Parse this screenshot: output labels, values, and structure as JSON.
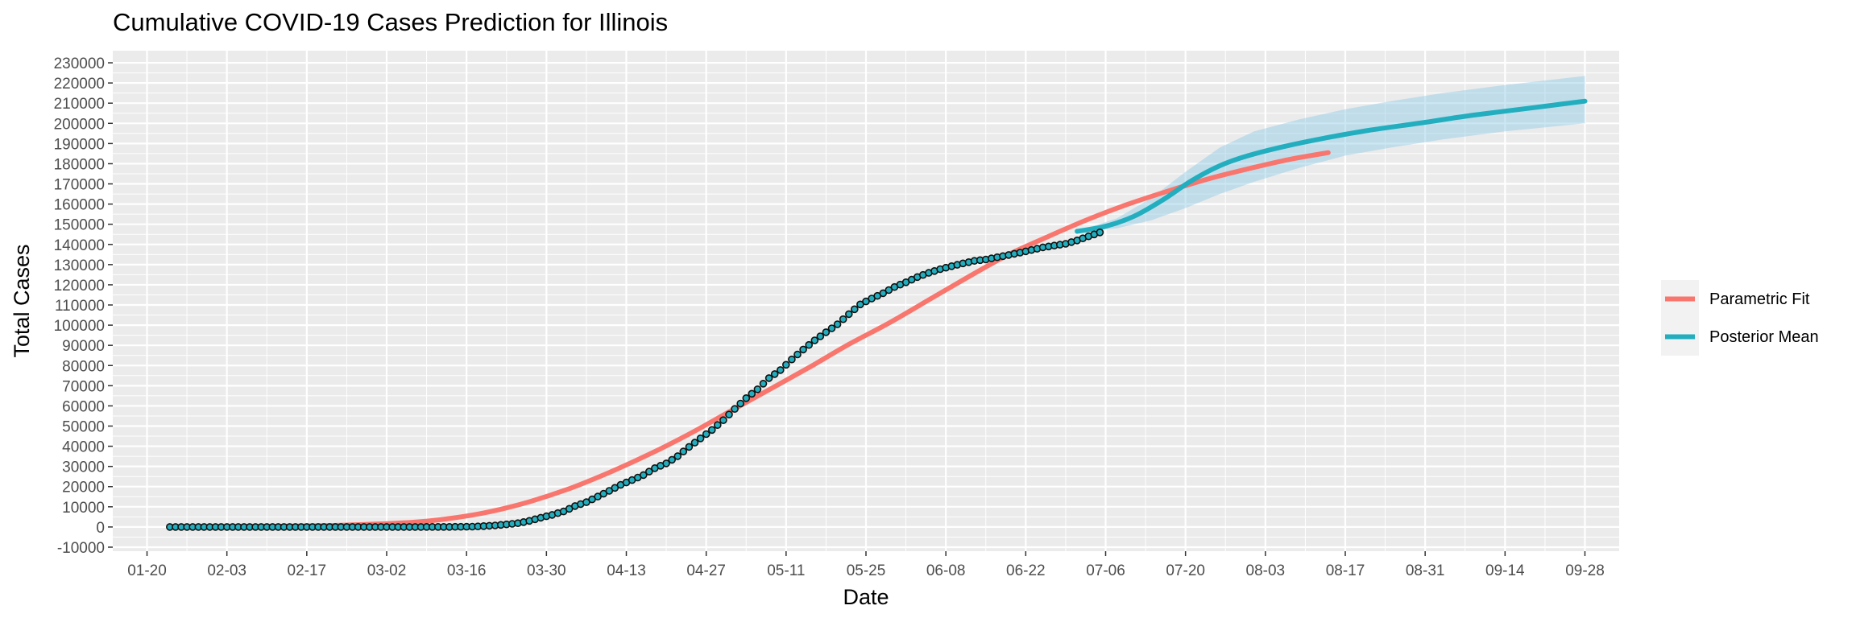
{
  "chart_data": {
    "type": "line",
    "title": "Cumulative COVID-19 Cases Prediction for Illinois",
    "xlabel": "Date",
    "ylabel": "Total Cases",
    "x_ticks": [
      "01-20",
      "02-03",
      "02-17",
      "03-02",
      "03-16",
      "03-30",
      "04-13",
      "04-27",
      "05-11",
      "05-25",
      "06-08",
      "06-22",
      "07-06",
      "07-20",
      "08-03",
      "08-17",
      "08-31",
      "09-14",
      "09-28"
    ],
    "x_range": [
      "2020-01-14",
      "2020-10-04"
    ],
    "ylim": [
      -12000,
      236000
    ],
    "y_ticks": [
      -10000,
      0,
      10000,
      20000,
      30000,
      40000,
      50000,
      60000,
      70000,
      80000,
      90000,
      100000,
      110000,
      120000,
      130000,
      140000,
      150000,
      160000,
      170000,
      180000,
      190000,
      200000,
      210000,
      220000,
      230000
    ],
    "grid": true,
    "legend_position": "right",
    "series": [
      {
        "name": "Parametric Fit",
        "color": "#F8766D",
        "points": [
          [
            "2020-01-24",
            100
          ],
          [
            "2020-02-07",
            250
          ],
          [
            "2020-02-21",
            700
          ],
          [
            "2020-03-06",
            2200
          ],
          [
            "2020-03-13",
            4200
          ],
          [
            "2020-03-20",
            7500
          ],
          [
            "2020-03-27",
            12500
          ],
          [
            "2020-04-03",
            19000
          ],
          [
            "2020-04-10",
            27000
          ],
          [
            "2020-04-17",
            36000
          ],
          [
            "2020-04-24",
            46000
          ],
          [
            "2020-05-01",
            57000
          ],
          [
            "2020-05-08",
            68000
          ],
          [
            "2020-05-15",
            79000
          ],
          [
            "2020-05-22",
            90500
          ],
          [
            "2020-05-29",
            101000
          ],
          [
            "2020-06-05",
            112500
          ],
          [
            "2020-06-12",
            124000
          ],
          [
            "2020-06-19",
            135000
          ],
          [
            "2020-06-26",
            144000
          ],
          [
            "2020-07-03",
            152500
          ],
          [
            "2020-07-10",
            160000
          ],
          [
            "2020-07-17",
            166500
          ],
          [
            "2020-07-24",
            172500
          ],
          [
            "2020-07-31",
            177500
          ],
          [
            "2020-08-07",
            182000
          ],
          [
            "2020-08-14",
            185500
          ]
        ]
      },
      {
        "name": "Posterior Mean",
        "color": "#22AEBE",
        "points": [
          [
            "2020-07-01",
            146500
          ],
          [
            "2020-07-06",
            149000
          ],
          [
            "2020-07-11",
            154000
          ],
          [
            "2020-07-16",
            162000
          ],
          [
            "2020-07-21",
            171500
          ],
          [
            "2020-07-26",
            179000
          ],
          [
            "2020-07-31",
            184000
          ],
          [
            "2020-08-07",
            189000
          ],
          [
            "2020-08-14",
            193000
          ],
          [
            "2020-08-21",
            196500
          ],
          [
            "2020-08-31",
            200500
          ],
          [
            "2020-09-07",
            203500
          ],
          [
            "2020-09-14",
            206000
          ],
          [
            "2020-09-21",
            208500
          ],
          [
            "2020-09-28",
            211000
          ]
        ],
        "band": [
          [
            "2020-07-01",
            146500,
            146500
          ],
          [
            "2020-07-08",
            148000,
            153000
          ],
          [
            "2020-07-14",
            152000,
            163000
          ],
          [
            "2020-07-20",
            158000,
            176000
          ],
          [
            "2020-07-26",
            165000,
            188000
          ],
          [
            "2020-08-01",
            171000,
            196000
          ],
          [
            "2020-08-09",
            178000,
            202000
          ],
          [
            "2020-08-17",
            184000,
            207000
          ],
          [
            "2020-08-25",
            188000,
            211000
          ],
          [
            "2020-09-03",
            192000,
            215000
          ],
          [
            "2020-09-14",
            196000,
            219000
          ],
          [
            "2020-09-28",
            200000,
            223500
          ]
        ]
      }
    ],
    "observed": {
      "color": "#22AEBE",
      "stroke": "#111111",
      "points": [
        [
          "2020-01-24",
          1
        ],
        [
          "2020-01-31",
          2
        ],
        [
          "2020-02-14",
          3
        ],
        [
          "2020-02-28",
          3
        ],
        [
          "2020-03-07",
          6
        ],
        [
          "2020-03-14",
          64
        ],
        [
          "2020-03-17",
          160
        ],
        [
          "2020-03-19",
          422
        ],
        [
          "2020-03-21",
          753
        ],
        [
          "2020-03-23",
          1285
        ],
        [
          "2020-03-25",
          1865
        ],
        [
          "2020-03-27",
          3026
        ],
        [
          "2020-03-29",
          4596
        ],
        [
          "2020-03-31",
          5994
        ],
        [
          "2020-04-02",
          7695
        ],
        [
          "2020-04-04",
          10357
        ],
        [
          "2020-04-06",
          12262
        ],
        [
          "2020-04-08",
          15078
        ],
        [
          "2020-04-10",
          17887
        ],
        [
          "2020-04-12",
          20852
        ],
        [
          "2020-04-14",
          23247
        ],
        [
          "2020-04-16",
          25733
        ],
        [
          "2020-04-18",
          29160
        ],
        [
          "2020-04-20",
          31508
        ],
        [
          "2020-04-22",
          35108
        ],
        [
          "2020-04-24",
          39658
        ],
        [
          "2020-04-26",
          43903
        ],
        [
          "2020-04-28",
          48102
        ],
        [
          "2020-04-30",
          52918
        ],
        [
          "2020-05-02",
          58505
        ],
        [
          "2020-05-04",
          63840
        ],
        [
          "2020-05-06",
          68232
        ],
        [
          "2020-05-08",
          73760
        ],
        [
          "2020-05-10",
          77741
        ],
        [
          "2020-05-12",
          83021
        ],
        [
          "2020-05-14",
          87937
        ],
        [
          "2020-05-16",
          92457
        ],
        [
          "2020-05-18",
          96485
        ],
        [
          "2020-05-20",
          100418
        ],
        [
          "2020-05-22",
          105444
        ],
        [
          "2020-05-24",
          110304
        ],
        [
          "2020-05-26",
          113195
        ],
        [
          "2020-05-28",
          115833
        ],
        [
          "2020-05-30",
          118917
        ],
        [
          "2020-06-01",
          121234
        ],
        [
          "2020-06-03",
          123830
        ],
        [
          "2020-06-05",
          125915
        ],
        [
          "2020-06-07",
          127757
        ],
        [
          "2020-06-09",
          129212
        ],
        [
          "2020-06-11",
          130603
        ],
        [
          "2020-06-13",
          131871
        ],
        [
          "2020-06-15",
          132543
        ],
        [
          "2020-06-17",
          133639
        ],
        [
          "2020-06-19",
          134778
        ],
        [
          "2020-06-21",
          135924
        ],
        [
          "2020-06-23",
          137224
        ],
        [
          "2020-06-25",
          138540
        ],
        [
          "2020-06-27",
          139434
        ],
        [
          "2020-06-29",
          140291
        ],
        [
          "2020-07-01",
          142000
        ],
        [
          "2020-07-03",
          144013
        ],
        [
          "2020-07-05",
          145952
        ]
      ]
    }
  }
}
